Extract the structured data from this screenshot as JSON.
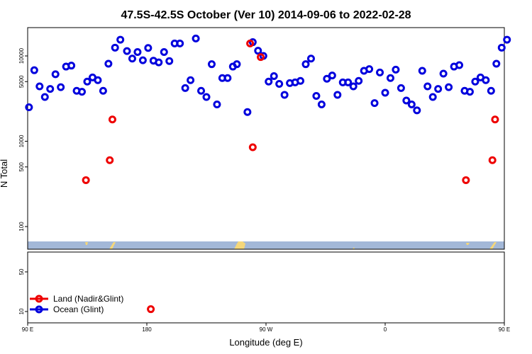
{
  "chart_data": {
    "type": "scatter",
    "title": "47.5S-42.5S October (Ver 10)   2014-09-06 to 2022-02-28",
    "xlabel": "Longitude (deg E)",
    "ylabel": "N Total",
    "y_scale": "log",
    "xlim": [
      90,
      450
    ],
    "ylim": [
      50,
      20000
    ],
    "x_ticks": [
      {
        "value": 90,
        "label": "90 E"
      },
      {
        "value": 180,
        "label": "180"
      },
      {
        "value": 270,
        "label": "90 W"
      },
      {
        "value": 360,
        "label": "0"
      },
      {
        "value": 450,
        "label": "90 E"
      },
      {
        "value": 540,
        "label": "180"
      }
    ],
    "y_ticks": [
      {
        "value": 100,
        "label": "100"
      },
      {
        "value": 500,
        "label": "500"
      },
      {
        "value": 1000,
        "label": "1000"
      },
      {
        "value": 5000,
        "label": "5000"
      },
      {
        "value": 10000,
        "label": "10000"
      }
    ],
    "lower_panel_y_ticks": [
      {
        "value": 10,
        "label": "10"
      },
      {
        "value": 50,
        "label": "50"
      }
    ],
    "colors": {
      "land": "#ee0000",
      "ocean": "#0000dd",
      "map_ocean": "#a3b8d8",
      "map_land": "#f5d77a"
    },
    "legend": {
      "position": "bottom-left",
      "entries": [
        {
          "label": "Land (Nadir&Glint)",
          "color": "#ee0000"
        },
        {
          "label": "Ocean (Glint)",
          "color": "#0000dd"
        }
      ]
    },
    "series": [
      {
        "name": "Ocean (Glint)",
        "points": [
          [
            91,
            2500
          ],
          [
            95,
            6800
          ],
          [
            99,
            4400
          ],
          [
            103,
            3300
          ],
          [
            107,
            4100
          ],
          [
            111,
            6100
          ],
          [
            115,
            4300
          ],
          [
            119,
            7500
          ],
          [
            123,
            7700
          ],
          [
            127,
            3900
          ],
          [
            131,
            3800
          ],
          [
            135,
            5000
          ],
          [
            139,
            5600
          ],
          [
            143,
            5200
          ],
          [
            147,
            3900
          ],
          [
            151,
            8100
          ],
          [
            156,
            12500
          ],
          [
            160,
            15500
          ],
          [
            165,
            11400
          ],
          [
            169,
            9300
          ],
          [
            173,
            11100
          ],
          [
            177,
            8900
          ],
          [
            181,
            12400
          ],
          [
            185,
            8800
          ],
          [
            189,
            8400
          ],
          [
            193,
            11100
          ],
          [
            197,
            8700
          ],
          [
            201,
            14000
          ],
          [
            205,
            14000
          ],
          [
            209,
            4200
          ],
          [
            213,
            5200
          ],
          [
            217,
            16000
          ],
          [
            221,
            3900
          ],
          [
            225,
            3300
          ],
          [
            229,
            8000
          ],
          [
            233,
            2700
          ],
          [
            237,
            5500
          ],
          [
            241,
            5500
          ],
          [
            245,
            7500
          ],
          [
            248,
            8000
          ],
          [
            256,
            2200
          ],
          [
            260,
            14500
          ],
          [
            264,
            11500
          ],
          [
            268,
            10000
          ],
          [
            272,
            5000
          ],
          [
            276,
            5800
          ],
          [
            280,
            4700
          ],
          [
            284,
            3500
          ],
          [
            288,
            4800
          ],
          [
            292,
            4900
          ],
          [
            296,
            5100
          ],
          [
            300,
            8000
          ],
          [
            304,
            9300
          ],
          [
            308,
            3400
          ],
          [
            312,
            2700
          ],
          [
            316,
            5400
          ],
          [
            320,
            5900
          ],
          [
            324,
            3500
          ],
          [
            328,
            4900
          ],
          [
            332,
            4900
          ],
          [
            336,
            4400
          ],
          [
            340,
            5100
          ],
          [
            344,
            6700
          ],
          [
            348,
            7000
          ],
          [
            352,
            2800
          ],
          [
            356,
            6400
          ],
          [
            360,
            3700
          ],
          [
            364,
            5500
          ],
          [
            368,
            6900
          ],
          [
            372,
            4200
          ],
          [
            376,
            3000
          ],
          [
            380,
            2700
          ],
          [
            384,
            2300
          ],
          [
            388,
            6700
          ],
          [
            392,
            4400
          ],
          [
            396,
            3300
          ],
          [
            400,
            4100
          ],
          [
            404,
            6200
          ],
          [
            408,
            4300
          ],
          [
            412,
            7500
          ],
          [
            416,
            7800
          ],
          [
            420,
            3900
          ],
          [
            424,
            3800
          ],
          [
            428,
            5000
          ],
          [
            432,
            5600
          ],
          [
            436,
            5200
          ],
          [
            440,
            3900
          ],
          [
            444,
            8100
          ],
          [
            448,
            12500
          ],
          [
            452,
            15500
          ]
        ]
      },
      {
        "name": "Land (Nadir&Glint)",
        "points": [
          [
            134,
            350
          ],
          [
            152,
            600
          ],
          [
            154,
            1800
          ],
          [
            258,
            14000
          ],
          [
            260,
            850
          ],
          [
            266,
            9700
          ],
          [
            421,
            350
          ],
          [
            441,
            600
          ],
          [
            443,
            1800
          ]
        ]
      }
    ],
    "lower_panel_points": [
      {
        "x": 183,
        "y": 11,
        "series": "Land (Nadir&Glint)"
      }
    ]
  }
}
